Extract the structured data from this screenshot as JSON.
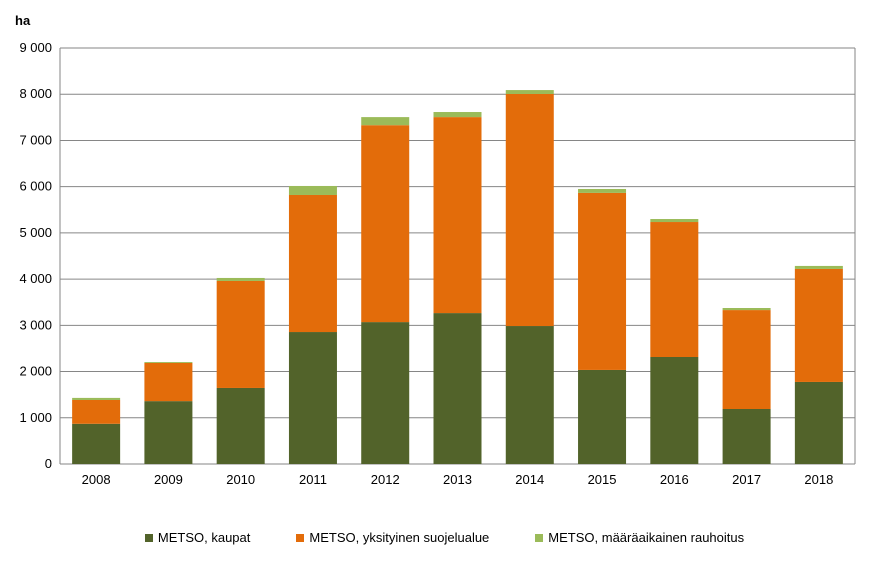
{
  "chart_data": {
    "type": "bar",
    "stacked": true,
    "ylabel": "ha",
    "ylim": [
      0,
      9000
    ],
    "yticks": [
      0,
      1000,
      2000,
      3000,
      4000,
      5000,
      6000,
      7000,
      8000,
      9000
    ],
    "ytick_labels": [
      "0",
      "1 000",
      "2 000",
      "3 000",
      "4 000",
      "5 000",
      "6 000",
      "7 000",
      "8 000",
      "9 000"
    ],
    "grid": true,
    "legend_placement": "bottom",
    "categories": [
      "2008",
      "2009",
      "2010",
      "2011",
      "2012",
      "2013",
      "2014",
      "2015",
      "2016",
      "2017",
      "2018"
    ],
    "series": [
      {
        "name": "METSO, kaupat",
        "color": "#52632a",
        "values": [
          870,
          1360,
          1645,
          2855,
          3070,
          3265,
          2985,
          2035,
          2315,
          1190,
          1775
        ]
      },
      {
        "name": "METSO, yksityinen suojelualue",
        "color": "#e36c0a",
        "values": [
          515,
          825,
          2315,
          2965,
          4260,
          4240,
          5020,
          3830,
          2920,
          2140,
          2445
        ]
      },
      {
        "name": "METSO, määräaikainen rauhoitus",
        "color": "#9bbb59",
        "values": [
          45,
          20,
          65,
          195,
          175,
          110,
          85,
          85,
          65,
          45,
          65
        ]
      }
    ]
  }
}
